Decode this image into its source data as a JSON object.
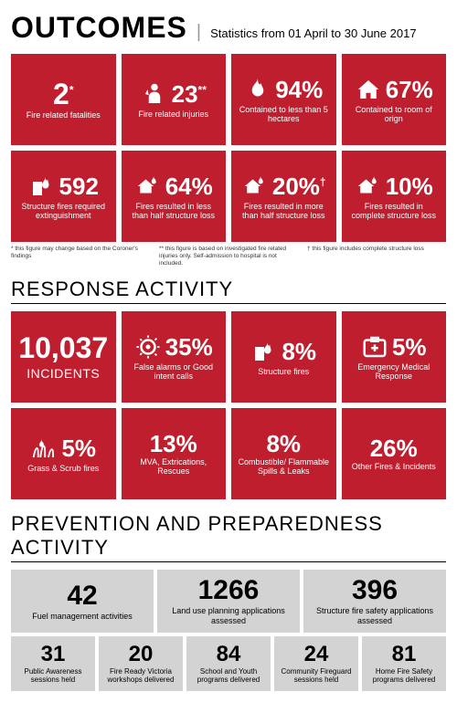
{
  "header": {
    "title": "OUTCOMES",
    "subtitle": "Statistics from 01 April to 30 June 2017"
  },
  "outcomes": {
    "cards": [
      {
        "icon": null,
        "value": "2",
        "sup": "*",
        "label": "Fire related fatalities",
        "big": true
      },
      {
        "icon": "injury",
        "value": "23",
        "sup": "**",
        "label": "Fire related injuries"
      },
      {
        "icon": "flame",
        "value": "94%",
        "sup": "",
        "label": "Contained to less than 5 hectares"
      },
      {
        "icon": "house",
        "value": "67%",
        "sup": "",
        "label": "Contained to room of orign"
      },
      {
        "icon": "building-fire",
        "value": "592",
        "sup": "",
        "label": "Structure fires required extinguishment"
      },
      {
        "icon": "house-fire",
        "value": "64%",
        "sup": "",
        "label": "Fires resulted in less than half structure loss"
      },
      {
        "icon": "house-fire",
        "value": "20%",
        "sup": "†",
        "label": "Fires resulted in more than half structure loss"
      },
      {
        "icon": "house-fire",
        "value": "10%",
        "sup": "",
        "label": "Fires resulted in complete structure loss"
      }
    ],
    "footnotes": [
      "* this figure may change based on the Coroner's findings",
      "** this figure is based on investigated fire related injuries only. Self-admission to hospital is not included.",
      "† this figure includes complete structure loss"
    ]
  },
  "response": {
    "title": "RESPONSE ACTIVITY",
    "cards": [
      {
        "icon": null,
        "value": "10,037",
        "sup": "",
        "label": "INCIDENTS",
        "isIncidents": true,
        "big": true
      },
      {
        "icon": "alarm",
        "value": "35%",
        "sup": "",
        "label": "False alarms or Good intent calls"
      },
      {
        "icon": "building-fire",
        "value": "8%",
        "sup": "",
        "label": "Structure fires"
      },
      {
        "icon": "medical",
        "value": "5%",
        "sup": "",
        "label": "Emergency Medical Response"
      },
      {
        "icon": "grass",
        "value": "5%",
        "sup": "",
        "label": "Grass & Scrub fires"
      },
      {
        "icon": null,
        "value": "13%",
        "sup": "",
        "label": "MVA, Extrications, Rescues"
      },
      {
        "icon": null,
        "value": "8%",
        "sup": "",
        "label": "Combustible/ Flammable Spills & Leaks"
      },
      {
        "icon": null,
        "value": "26%",
        "sup": "",
        "label": "Other Fires & Incidents"
      }
    ]
  },
  "prevention": {
    "title": "PREVENTION AND PREPAREDNESS ACTIVITY",
    "top": [
      {
        "value": "42",
        "label": "Fuel management activities"
      },
      {
        "value": "1266",
        "label": "Land use planning applications assessed"
      },
      {
        "value": "396",
        "label": "Structure fire safety applications assessed"
      }
    ],
    "bottom": [
      {
        "value": "31",
        "label": "Public Awareness sessions held"
      },
      {
        "value": "20",
        "label": "Fire Ready Victoria workshops delivered"
      },
      {
        "value": "84",
        "label": "School and Youth programs delivered"
      },
      {
        "value": "24",
        "label": "Community Fireguard sessions held"
      },
      {
        "value": "81",
        "label": "Home Fire Safety programs delivered"
      }
    ]
  },
  "colors": {
    "red": "#be1e2d",
    "gray": "#d3d3d3",
    "white": "#ffffff",
    "black": "#000000"
  }
}
